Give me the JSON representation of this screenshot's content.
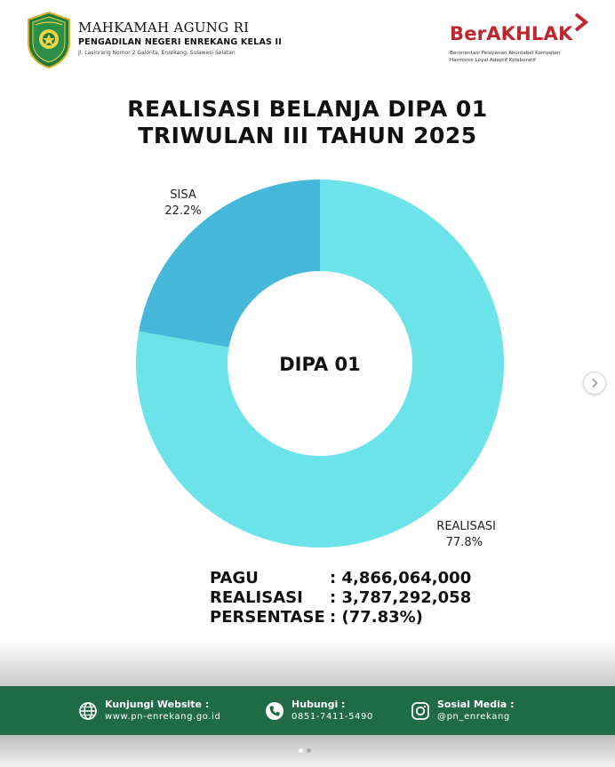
{
  "header": {
    "org_title": "MAHKAMAH AGUNG RI",
    "org_subtitle": "PENGADILAN NEGERI ENREKANG KELAS II",
    "org_address": "Jl. Lasinrang Nomor 2 Galonta, Enrekang, Sulawesi Selatan",
    "berakhlak_word": "BerAKHLAK",
    "berakhlak_tag1": "Berorientasi Pelayanan Akuntabel Kompeten",
    "berakhlak_tag2": "Harmonis Loyal Adaptif Kolaboratif",
    "brand_color": "#c0262d"
  },
  "title": {
    "line1": "REALISASI BELANJA DIPA 01",
    "line2": "TRIWULAN III TAHUN 2025"
  },
  "chart_data": {
    "type": "pie",
    "donut": true,
    "center_label": "DIPA 01",
    "slices": [
      {
        "name": "REALISASI",
        "value": 77.8,
        "label": "77.8%",
        "color": "#6be3e8"
      },
      {
        "name": "SISA",
        "value": 22.2,
        "label": "22.2%",
        "color": "#45b8d9"
      }
    ]
  },
  "summary": {
    "rows": [
      {
        "label": "PAGU",
        "value": ": 4,866,064,000"
      },
      {
        "label": "REALISASI",
        "value": ": 3,787,292,058"
      },
      {
        "label": "PERSENTASE",
        "value": ": (77.83%)"
      }
    ]
  },
  "footer": {
    "bg_color": "#1f6b45",
    "website_label": "Kunjungi Website :",
    "website_value": "www.pn-enrekang.go.id",
    "phone_label": "Hubungi :",
    "phone_value": "0851-7411-5490",
    "social_label": "Sosial Media :",
    "social_value": "@pn_enrekang",
    "icons": [
      "globe-icon",
      "phone-icon",
      "instagram-icon"
    ]
  },
  "carousel": {
    "slide_count": 2,
    "active_index": 0,
    "next_icon": "chevron-right-icon"
  }
}
